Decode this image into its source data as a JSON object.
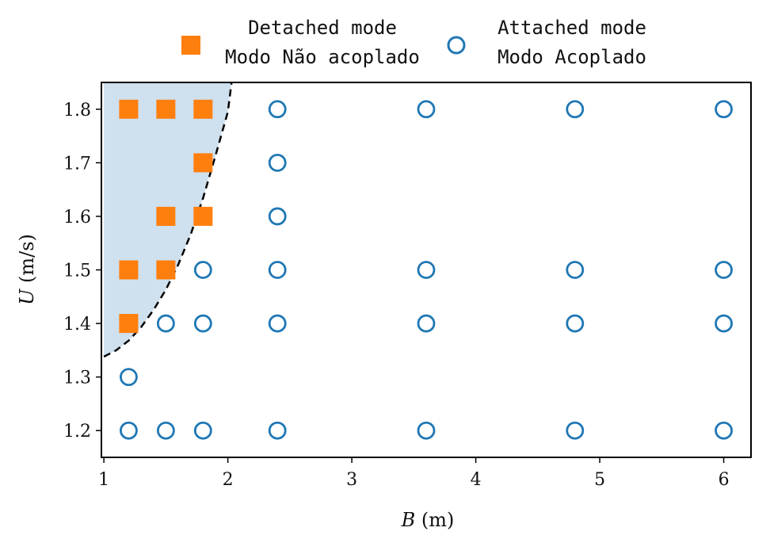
{
  "chart_data": {
    "type": "scatter",
    "xlabel_var": "B",
    "xlabel_unit": "(m)",
    "ylabel_var": "U",
    "ylabel_unit": "(m/s)",
    "xlim": [
      0.98,
      6.22
    ],
    "ylim": [
      1.15,
      1.85
    ],
    "x_ticks": [
      "1",
      "2",
      "3",
      "4",
      "5",
      "6"
    ],
    "x_tick_values": [
      1,
      2,
      3,
      4,
      5,
      6
    ],
    "y_ticks": [
      "1.2",
      "1.3",
      "1.4",
      "1.5",
      "1.6",
      "1.7",
      "1.8"
    ],
    "y_tick_values": [
      1.2,
      1.3,
      1.4,
      1.5,
      1.6,
      1.7,
      1.8
    ],
    "legend_position": "top, outside plot",
    "series": [
      {
        "name": "Detached mode",
        "name_translation": "Modo Não acoplado",
        "marker": "filled-square",
        "color": "#ff7f0e",
        "points": [
          [
            1.2,
            1.8
          ],
          [
            1.5,
            1.8
          ],
          [
            1.8,
            1.8
          ],
          [
            1.8,
            1.7
          ],
          [
            1.5,
            1.6
          ],
          [
            1.8,
            1.6
          ],
          [
            1.2,
            1.5
          ],
          [
            1.5,
            1.5
          ],
          [
            1.2,
            1.4
          ]
        ]
      },
      {
        "name": "Attached mode",
        "name_translation": "Modo Acoplado",
        "marker": "open-circle",
        "color": "#1f77b4",
        "points": [
          [
            2.4,
            1.8
          ],
          [
            3.6,
            1.8
          ],
          [
            4.8,
            1.8
          ],
          [
            6.0,
            1.8
          ],
          [
            2.4,
            1.7
          ],
          [
            2.4,
            1.6
          ],
          [
            1.8,
            1.5
          ],
          [
            2.4,
            1.5
          ],
          [
            3.6,
            1.5
          ],
          [
            4.8,
            1.5
          ],
          [
            6.0,
            1.5
          ],
          [
            1.5,
            1.4
          ],
          [
            1.8,
            1.4
          ],
          [
            2.4,
            1.4
          ],
          [
            3.6,
            1.4
          ],
          [
            4.8,
            1.4
          ],
          [
            6.0,
            1.4
          ],
          [
            1.2,
            1.3
          ],
          [
            1.2,
            1.2
          ],
          [
            1.5,
            1.2
          ],
          [
            1.8,
            1.2
          ],
          [
            2.4,
            1.2
          ],
          [
            3.6,
            1.2
          ],
          [
            4.8,
            1.2
          ],
          [
            6.0,
            1.2
          ]
        ]
      }
    ],
    "boundary_curve": {
      "style": "dashed",
      "color": "#000000",
      "fill_color": "#cfe0ee",
      "points": [
        [
          1.0,
          1.338
        ],
        [
          1.1,
          1.35
        ],
        [
          1.2,
          1.368
        ],
        [
          1.3,
          1.393
        ],
        [
          1.4,
          1.425
        ],
        [
          1.5,
          1.463
        ],
        [
          1.6,
          1.51
        ],
        [
          1.7,
          1.566
        ],
        [
          1.8,
          1.634
        ],
        [
          1.9,
          1.713
        ],
        [
          2.0,
          1.795
        ],
        [
          2.03,
          1.85
        ]
      ]
    }
  }
}
